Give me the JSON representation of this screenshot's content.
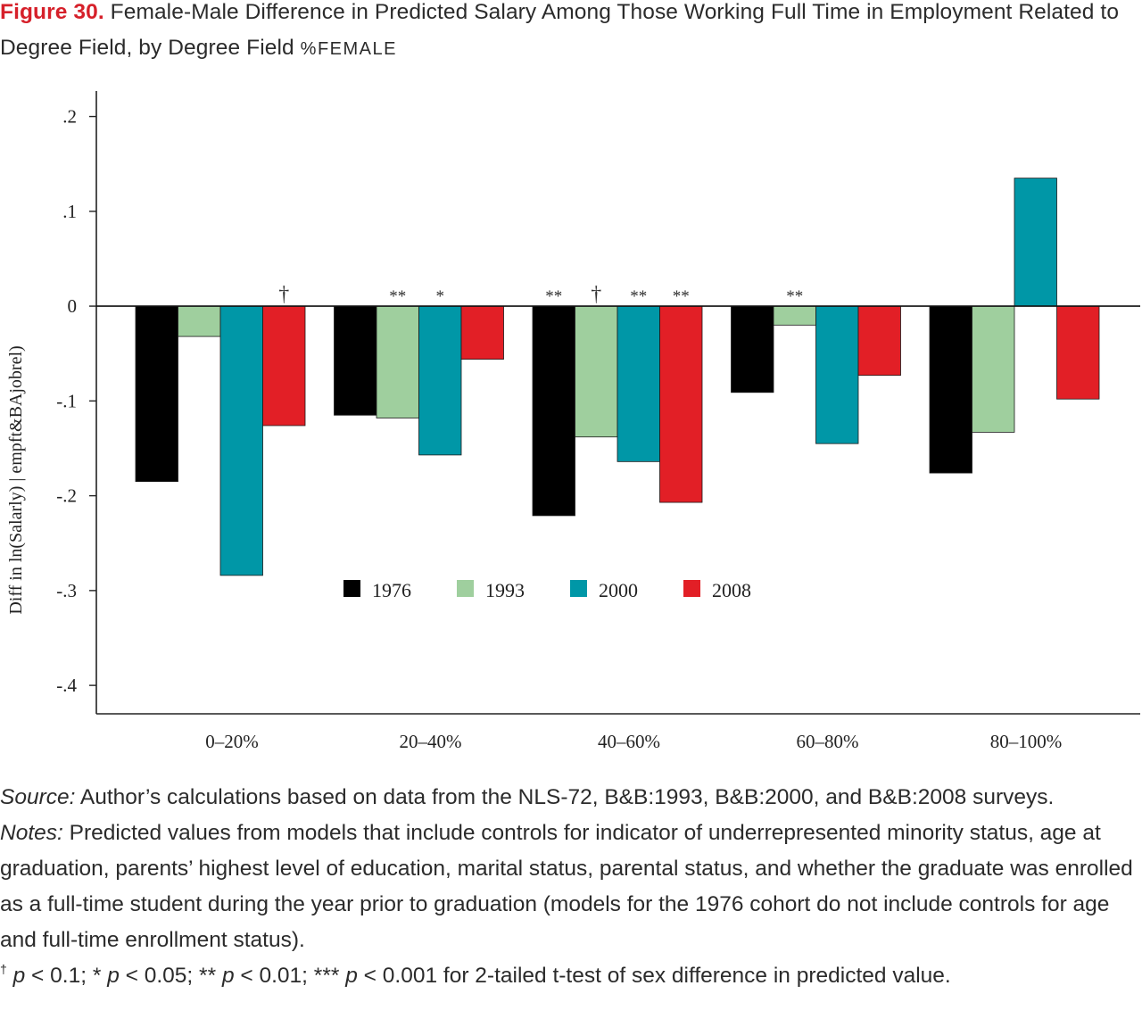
{
  "figure": {
    "label": "Figure 30.",
    "title_main": "Female-Male Difference in Predicted Salary Among Those Working Full Time in Employment Related to Degree Field, by Degree Field",
    "title_pct": "%FEMALE"
  },
  "chart_data": {
    "type": "bar",
    "ylabel": "Diff in ln(Salarly) | empft&BAjobrel)",
    "xlabel": "",
    "ylim": [
      -0.43,
      0.225
    ],
    "yticks": [
      {
        "value": 0.2,
        "label": ".2"
      },
      {
        "value": 0.1,
        "label": ".1"
      },
      {
        "value": 0,
        "label": "0"
      },
      {
        "value": -0.1,
        "label": "-.1"
      },
      {
        "value": -0.2,
        "label": "-.2"
      },
      {
        "value": -0.3,
        "label": "-.3"
      },
      {
        "value": -0.4,
        "label": "-.4"
      }
    ],
    "categories": [
      "0–20%",
      "20–40%",
      "40–60%",
      "60–80%",
      "80–100%"
    ],
    "legend_position": "center",
    "series": [
      {
        "name": "1976",
        "color": "#000000",
        "values": [
          -0.185,
          -0.115,
          -0.221,
          -0.091,
          -0.176
        ],
        "sig": [
          "",
          "",
          "**",
          "",
          ""
        ]
      },
      {
        "name": "1993",
        "color": "#9fcf9e",
        "values": [
          -0.032,
          -0.118,
          -0.138,
          -0.02,
          -0.133
        ],
        "sig": [
          "",
          "**",
          "†",
          "**",
          ""
        ]
      },
      {
        "name": "2000",
        "color": "#0097a7",
        "values": [
          -0.284,
          -0.157,
          -0.164,
          -0.145,
          0.135
        ],
        "sig": [
          "",
          "*",
          "**",
          "",
          ""
        ]
      },
      {
        "name": "2008",
        "color": "#e21f26",
        "values": [
          -0.126,
          -0.056,
          -0.207,
          -0.073,
          -0.098
        ],
        "sig": [
          "†",
          "",
          "**",
          "",
          ""
        ]
      }
    ]
  },
  "notes": {
    "source_label": "Source:",
    "source_text": "Author’s calculations based on data from the NLS-72, B&B:1993, B&B:2000, and B&B:2008 surveys.",
    "notes_label": "Notes:",
    "notes_text": "Predicted values from models that include controls for indicator of underrepresented minority status, age at graduation, parents’ highest level of education, marital status, parental status, and whether the graduate was enrolled as a full-time student during the year prior to graduation (models for the 1976 cohort do not include controls for age and full-time enrollment status).",
    "sig_dagger": "†",
    "sig_p1": "p",
    "sig_t1": " < 0.1; * ",
    "sig_p2": "p",
    "sig_t2": " < 0.05; ** ",
    "sig_p3": "p",
    "sig_t3": " < 0.01; *** ",
    "sig_p4": "p",
    "sig_t4": " < 0.001 for 2-tailed t-test of sex difference in predicted value."
  }
}
